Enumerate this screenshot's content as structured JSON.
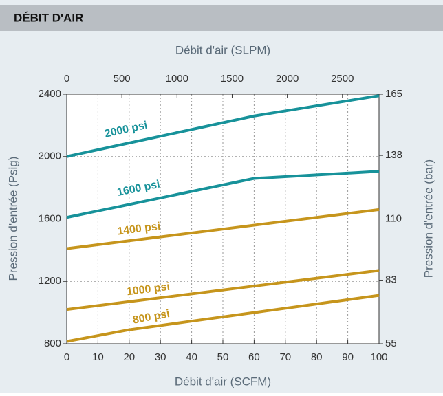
{
  "chart_data": {
    "type": "line",
    "title": "DÉBIT D'AIR",
    "xlabel": "Débit d'air (SCFM)",
    "x2label": "Débit d'air (SLPM)",
    "ylabel": "Pression d'entrée (Psig)",
    "y2label": "Pression d'entrée (bar)",
    "x": [
      0,
      20,
      60,
      100
    ],
    "xlim": [
      0,
      100
    ],
    "xticks": [
      0,
      10,
      20,
      30,
      40,
      50,
      60,
      70,
      80,
      90,
      100
    ],
    "x2lim": [
      0,
      2832
    ],
    "x2ticks": [
      0,
      500,
      1000,
      1500,
      2000,
      2500
    ],
    "ylim": [
      800,
      2400
    ],
    "yticks": [
      800,
      1200,
      1600,
      2000,
      2400
    ],
    "y2lim": [
      55,
      165
    ],
    "y2ticks": [
      55,
      83,
      110,
      138,
      165
    ],
    "grid": true,
    "series": [
      {
        "name": "2000 psi",
        "color": "#17929a",
        "values": [
          2000,
          2087,
          2260,
          2390
        ]
      },
      {
        "name": "1600 psi",
        "color": "#17929a",
        "values": [
          1610,
          1693,
          1860,
          1905
        ]
      },
      {
        "name": "1400 psi",
        "color": "#c6951c",
        "values": [
          1410,
          1460,
          1560,
          1660
        ]
      },
      {
        "name": "1000 psi",
        "color": "#c6951c",
        "values": [
          1020,
          1070,
          1170,
          1270
        ]
      },
      {
        "name": "800 psi",
        "color": "#c6951c",
        "values": [
          815,
          890,
          1000,
          1110
        ]
      }
    ]
  }
}
